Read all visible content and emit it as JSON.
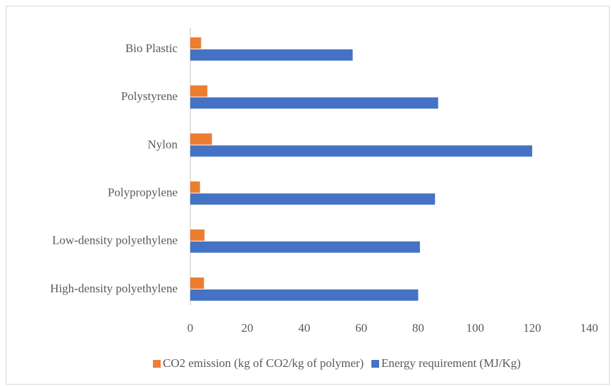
{
  "chart_data": {
    "type": "bar",
    "orientation": "horizontal",
    "categories": [
      "High-density polyethylene",
      "Low-density polyethylene",
      "Polypropylene",
      "Nylon",
      "Polystyrene",
      "Bio Plastic"
    ],
    "series": [
      {
        "name": "CO2 emission (kg of CO2/kg of polymer)",
        "color": "#ed7d31",
        "values": [
          4.8,
          5,
          3.4,
          7.6,
          6,
          3.8
        ]
      },
      {
        "name": "Energy requirement (MJ/Kg)",
        "color": "#4472c4",
        "values": [
          80,
          80.6,
          85.9,
          120,
          87,
          57
        ]
      }
    ],
    "xlim": [
      0,
      140
    ],
    "xticks": [
      0,
      20,
      40,
      60,
      80,
      100,
      120,
      140
    ],
    "grid": false,
    "legend": "bottom"
  }
}
